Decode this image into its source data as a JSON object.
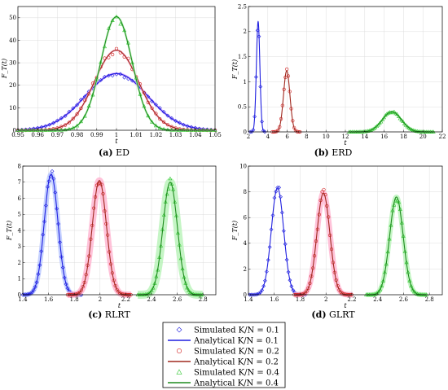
{
  "legend": [
    {
      "name": "Simulated K/N = 0.1",
      "kind": "sim",
      "marker": "diamond",
      "color": "#1f1fe0"
    },
    {
      "name": "Analytical K/N = 0.1",
      "kind": "ana",
      "color": "#1f1fe0"
    },
    {
      "name": "Simulated K/N = 0.2",
      "kind": "sim",
      "marker": "circle",
      "color": "#d01a1a"
    },
    {
      "name": "Analytical K/N = 0.2",
      "kind": "ana",
      "color": "#a0281e"
    },
    {
      "name": "Simulated K/N = 0.4",
      "kind": "sim",
      "marker": "triangle",
      "color": "#2ec62e"
    },
    {
      "name": "Analytical K/N = 0.4",
      "kind": "ana",
      "color": "#1e8c1e"
    }
  ],
  "chart_data": [
    {
      "id": "ed",
      "type": "line",
      "caption_tag": "(a)",
      "caption_name": "ED",
      "xlabel": "t",
      "ylabel": "F_T(t)",
      "xlim": [
        0.95,
        1.05
      ],
      "ylim": [
        0,
        55
      ],
      "xticks": [
        0.95,
        0.96,
        0.97,
        0.98,
        0.99,
        1,
        1.01,
        1.02,
        1.03,
        1.04,
        1.05
      ],
      "xtick_labels": [
        "0.95",
        "0.96",
        "0.97",
        "0.98",
        "0.99",
        "1",
        "1.01",
        "1.02",
        "1.03",
        "1.04",
        "1.05"
      ],
      "yticks": [
        0,
        10,
        20,
        30,
        40,
        50
      ],
      "ytick_labels": [
        "0",
        "10",
        "20",
        "30",
        "40",
        "50"
      ],
      "grid": true,
      "sim_step": 0.002,
      "series": [
        {
          "name": "K/N = 0.1",
          "mean": 1.0,
          "sd": 0.0158,
          "peak": 25.2,
          "band": "#d9a8ff",
          "band_width": 3
        },
        {
          "name": "K/N = 0.2",
          "mean": 1.0,
          "sd": 0.0112,
          "peak": 35.6,
          "band": "#ffb3d0",
          "band_width": 2.5
        },
        {
          "name": "K/N = 0.4",
          "mean": 1.0,
          "sd": 0.0079,
          "peak": 50.5,
          "band": "#b6f2b6",
          "band_width": 2.5
        }
      ]
    },
    {
      "id": "erd",
      "type": "line",
      "caption_tag": "(b)",
      "caption_name": "ERD",
      "xlabel": "t",
      "ylabel": "F_T(t)",
      "xlim": [
        2,
        22
      ],
      "ylim": [
        0,
        2.5
      ],
      "xticks": [
        2,
        4,
        6,
        8,
        10,
        12,
        14,
        16,
        18,
        20,
        22
      ],
      "xtick_labels": [
        "2",
        "4",
        "6",
        "8",
        "10",
        "12",
        "14",
        "16",
        "18",
        "20",
        "22"
      ],
      "yticks": [
        0,
        0.5,
        1,
        1.5,
        2,
        2.5
      ],
      "ytick_labels": [
        "0",
        "0.5",
        "1",
        "1.5",
        "2",
        "2.5"
      ],
      "grid": true,
      "sim_step": 0.15,
      "series": [
        {
          "name": "K/N = 0.1",
          "mean": 3.0,
          "sd": 0.18,
          "peak": 2.2,
          "band": "#b6c6ff",
          "band_width": 0
        },
        {
          "name": "K/N = 0.2",
          "mean": 5.95,
          "sd": 0.33,
          "peak": 1.22,
          "band": "#ffb3d0",
          "band_width": 0
        },
        {
          "name": "K/N = 0.4",
          "mean": 16.8,
          "sd": 0.98,
          "peak": 0.4,
          "band": "#b6f2b6",
          "band_width": 2
        }
      ]
    },
    {
      "id": "rlrt",
      "type": "line",
      "caption_tag": "(c)",
      "caption_name": "RLRT",
      "xlabel": "t",
      "ylabel": "F_T(t)",
      "xlim": [
        1.4,
        2.9
      ],
      "ylim": [
        0,
        8
      ],
      "xticks": [
        1.4,
        1.6,
        1.8,
        2,
        2.2,
        2.4,
        2.6,
        2.8
      ],
      "xtick_labels": [
        "1.4",
        "1.6",
        "1.8",
        "2",
        "2.2",
        "2.4",
        "2.6",
        "2.8"
      ],
      "yticks": [
        0,
        1,
        2,
        3,
        4,
        5,
        6,
        7,
        8
      ],
      "ytick_labels": [
        "0",
        "1",
        "2",
        "3",
        "4",
        "5",
        "6",
        "7",
        "8"
      ],
      "grid": true,
      "sim_step": 0.012,
      "series": [
        {
          "name": "K/N = 0.1",
          "mean": 1.62,
          "sd": 0.053,
          "peak": 7.5,
          "band": "#b6c6ff",
          "band_width": 6
        },
        {
          "name": "K/N = 0.2",
          "mean": 1.995,
          "sd": 0.055,
          "peak": 7.1,
          "band": "#ffb3d0",
          "band_width": 8
        },
        {
          "name": "K/N = 0.4",
          "mean": 2.545,
          "sd": 0.056,
          "peak": 7.0,
          "band": "#b6f2b6",
          "band_width": 10
        }
      ]
    },
    {
      "id": "glrt",
      "type": "line",
      "caption_tag": "(d)",
      "caption_name": "GLRT",
      "xlabel": "t",
      "ylabel": "F_T(t)",
      "xlim": [
        1.4,
        2.9
      ],
      "ylim": [
        0,
        10
      ],
      "xticks": [
        1.4,
        1.6,
        1.8,
        2,
        2.2,
        2.4,
        2.6,
        2.8
      ],
      "xtick_labels": [
        "1.4",
        "1.6",
        "1.8",
        "2",
        "2.2",
        "2.4",
        "2.6",
        "2.8"
      ],
      "yticks": [
        0,
        2,
        4,
        6,
        8,
        10
      ],
      "ytick_labels": [
        "0",
        "2",
        "4",
        "6",
        "8",
        "10"
      ],
      "grid": true,
      "sim_step": 0.012,
      "series": [
        {
          "name": "K/N = 0.1",
          "mean": 1.625,
          "sd": 0.048,
          "peak": 8.3,
          "band": "#b6c6ff",
          "band_width": 0
        },
        {
          "name": "K/N = 0.2",
          "mean": 1.98,
          "sd": 0.05,
          "peak": 7.9,
          "band": "#ffb3d0",
          "band_width": 7
        },
        {
          "name": "K/N = 0.4",
          "mean": 2.545,
          "sd": 0.052,
          "peak": 7.6,
          "band": "#b6f2b6",
          "band_width": 6
        }
      ]
    }
  ]
}
